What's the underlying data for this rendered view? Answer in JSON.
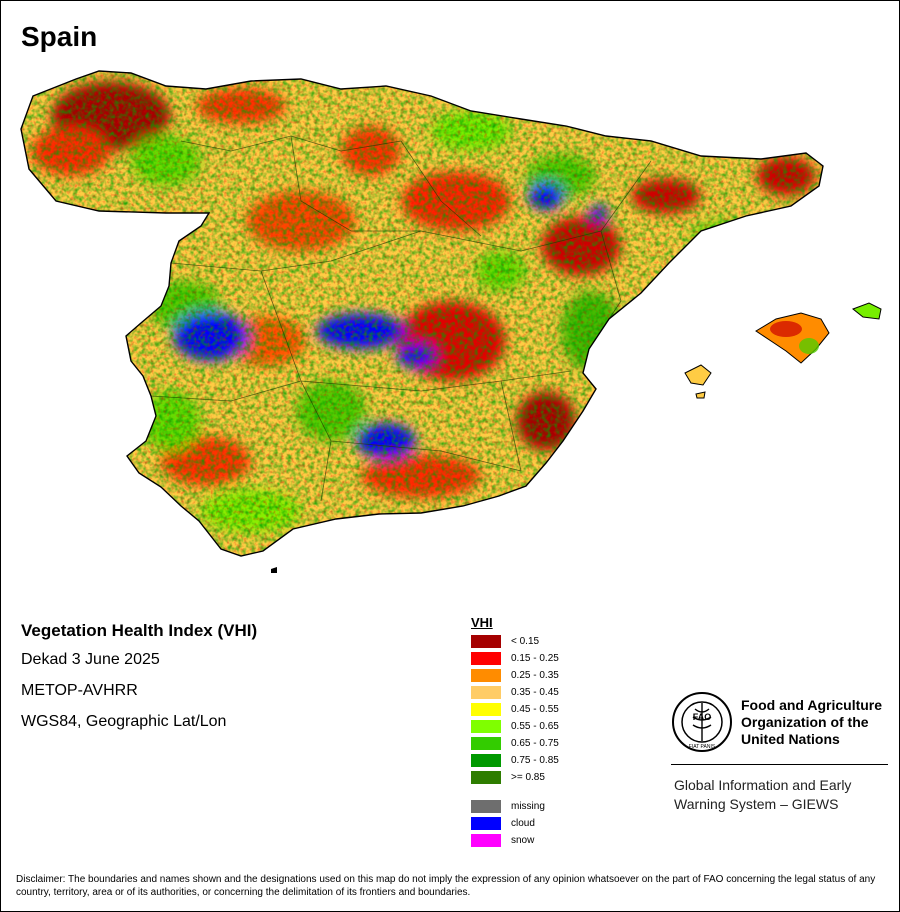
{
  "map": {
    "title": "Spain",
    "region": "Spain"
  },
  "info": {
    "title": "Vegetation Health Index (VHI)",
    "period": "Dekad 3 June 2025",
    "sensor": "METOP-AVHRR",
    "projection": "WGS84, Geographic Lat/Lon"
  },
  "legend": {
    "title": "VHI",
    "classes": [
      {
        "label": "< 0.15",
        "color": "#a50000"
      },
      {
        "label": "0.15 - 0.25",
        "color": "#ff0000"
      },
      {
        "label": "0.25 - 0.35",
        "color": "#ff8c00"
      },
      {
        "label": "0.35 - 0.45",
        "color": "#ffcc66"
      },
      {
        "label": "0.45 - 0.55",
        "color": "#ffff00"
      },
      {
        "label": "0.55 - 0.65",
        "color": "#7fff00"
      },
      {
        "label": "0.65 - 0.75",
        "color": "#33cc00"
      },
      {
        "label": "0.75 - 0.85",
        "color": "#009900"
      },
      {
        "label": ">= 0.85",
        "color": "#2e7d00"
      }
    ],
    "special": [
      {
        "label": "missing",
        "color": "#6e6e6e"
      },
      {
        "label": "cloud",
        "color": "#0000ff"
      },
      {
        "label": "snow",
        "color": "#ff00ff"
      }
    ]
  },
  "fao": {
    "name_lines": [
      "Food and Agriculture",
      "Organization of the",
      "United Nations"
    ],
    "logo_text": "FAO",
    "motto": "FIAT PANIS",
    "giews_lines": [
      "Global Information and Early",
      "Warning System – GIEWS"
    ]
  },
  "disclaimer": "Disclaimer: The boundaries and names shown and the designations used on this map do not imply the expression of any opinion whatsoever on the part of FAO concerning the legal status of any country, territory, area or of its authorities, or concerning the delimitation of its frontiers and boundaries."
}
